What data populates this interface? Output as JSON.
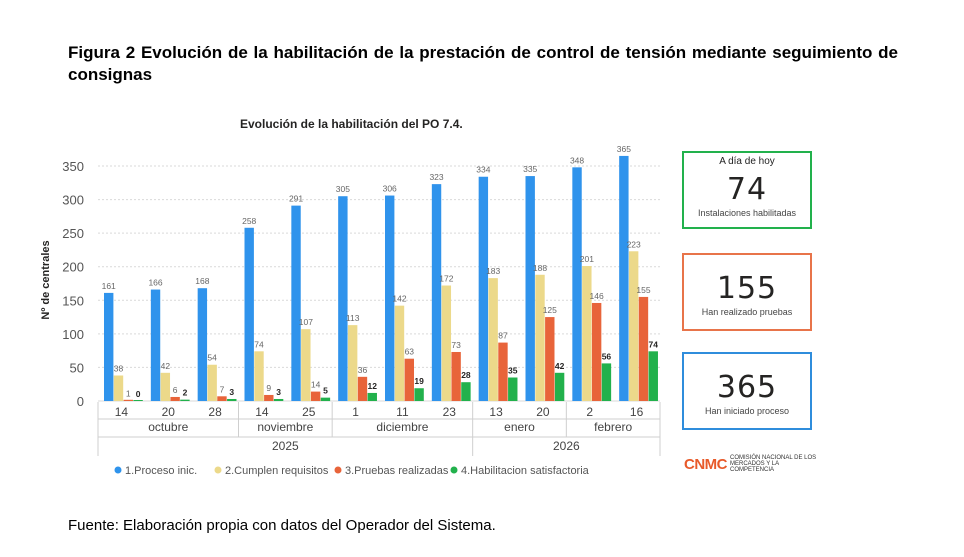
{
  "figure": {
    "title": "Figura 2 Evolución de la habilitación de la prestación de control de tensión mediante seguimiento de consignas",
    "source": "Fuente: Elaboración propia con datos del Operador del Sistema."
  },
  "kpis": [
    {
      "header": "A día de hoy",
      "value": "74",
      "caption": "Instalaciones habilitadas",
      "color": "#22b14c"
    },
    {
      "header": "",
      "value": "155",
      "caption": "Han realizado pruebas",
      "color": "#e8744a"
    },
    {
      "header": "",
      "value": "365",
      "caption": "Han iniciado proceso",
      "color": "#2f8ddc"
    }
  ],
  "logo": {
    "mark": "CNMC",
    "text": "COMISIÓN NACIONAL DE LOS MERCADOS Y LA COMPETENCIA"
  },
  "chart_data": {
    "type": "bar",
    "title": "Evolución de la habilitación del PO 7.4.",
    "ylabel": "Nº de centrales",
    "xlabel": "",
    "ylim": [
      0,
      365
    ],
    "yticks": [
      0,
      50,
      100,
      150,
      200,
      250,
      300,
      350
    ],
    "grid": true,
    "legend_position": "bottom-left",
    "categories": [
      "14",
      "20",
      "28",
      "14",
      "25",
      "1",
      "11",
      "23",
      "13",
      "20",
      "2",
      "16"
    ],
    "month_groups": [
      {
        "label": "octubre",
        "count": 3
      },
      {
        "label": "noviembre",
        "count": 2
      },
      {
        "label": "diciembre",
        "count": 3
      },
      {
        "label": "enero",
        "count": 2
      },
      {
        "label": "febrero",
        "count": 2
      }
    ],
    "year_groups": [
      {
        "label": "2025",
        "count": 8
      },
      {
        "label": "2026",
        "count": 4
      }
    ],
    "series": [
      {
        "name": "1.Proceso inic.",
        "color": "#2f93ec",
        "values": [
          161,
          166,
          168,
          258,
          291,
          305,
          306,
          323,
          334,
          335,
          348,
          365
        ]
      },
      {
        "name": "2.Cumplen requisitos",
        "color": "#ecd98a",
        "values": [
          38,
          42,
          54,
          74,
          107,
          113,
          142,
          172,
          183,
          188,
          201,
          223
        ]
      },
      {
        "name": "3.Pruebas realizadas",
        "color": "#e8643a",
        "values": [
          1,
          6,
          7,
          9,
          14,
          36,
          63,
          73,
          87,
          125,
          146,
          155
        ]
      },
      {
        "name": "4.Habilitacion satisfactoria",
        "color": "#22b14c",
        "values": [
          0,
          2,
          3,
          3,
          5,
          12,
          19,
          28,
          35,
          42,
          56,
          74
        ]
      }
    ]
  }
}
